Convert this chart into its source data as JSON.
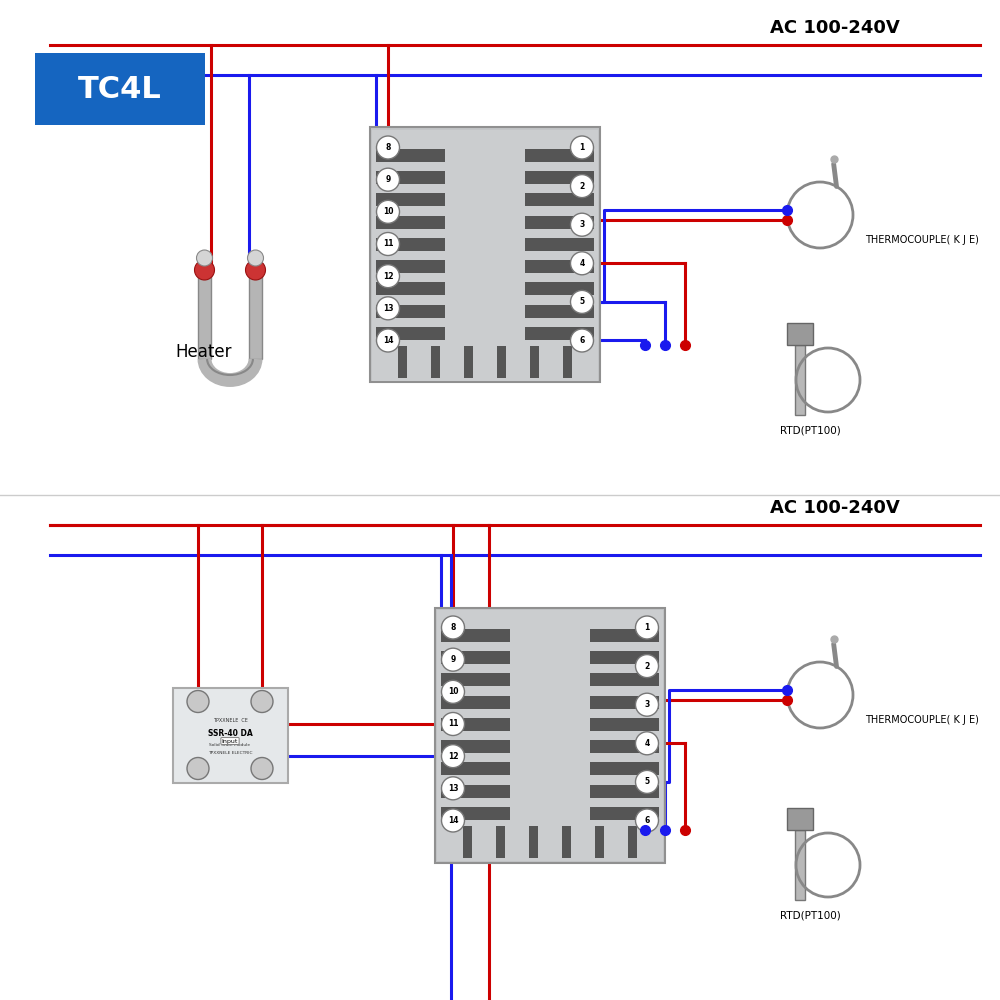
{
  "bg_color": "#ffffff",
  "red": "#cc0000",
  "blue": "#1a1aee",
  "gray_body": "#c0c0c0",
  "gray_vent": "#404040",
  "tc4l_bg": "#1565c0",
  "tc4l_text": "#ffffff",
  "title": "AC 100-240V",
  "heater_label": "Heater",
  "tc_label": "THERMOCOUPLE( K J E)",
  "rtd_label": "RTD(PT100)",
  "terminals_left": [
    "8",
    "9",
    "10",
    "11",
    "12",
    "13",
    "14"
  ],
  "terminals_right": [
    "1",
    "2",
    "3",
    "4",
    "5",
    "6"
  ],
  "lw_wire": 2.2,
  "lw_wire_thin": 1.6
}
